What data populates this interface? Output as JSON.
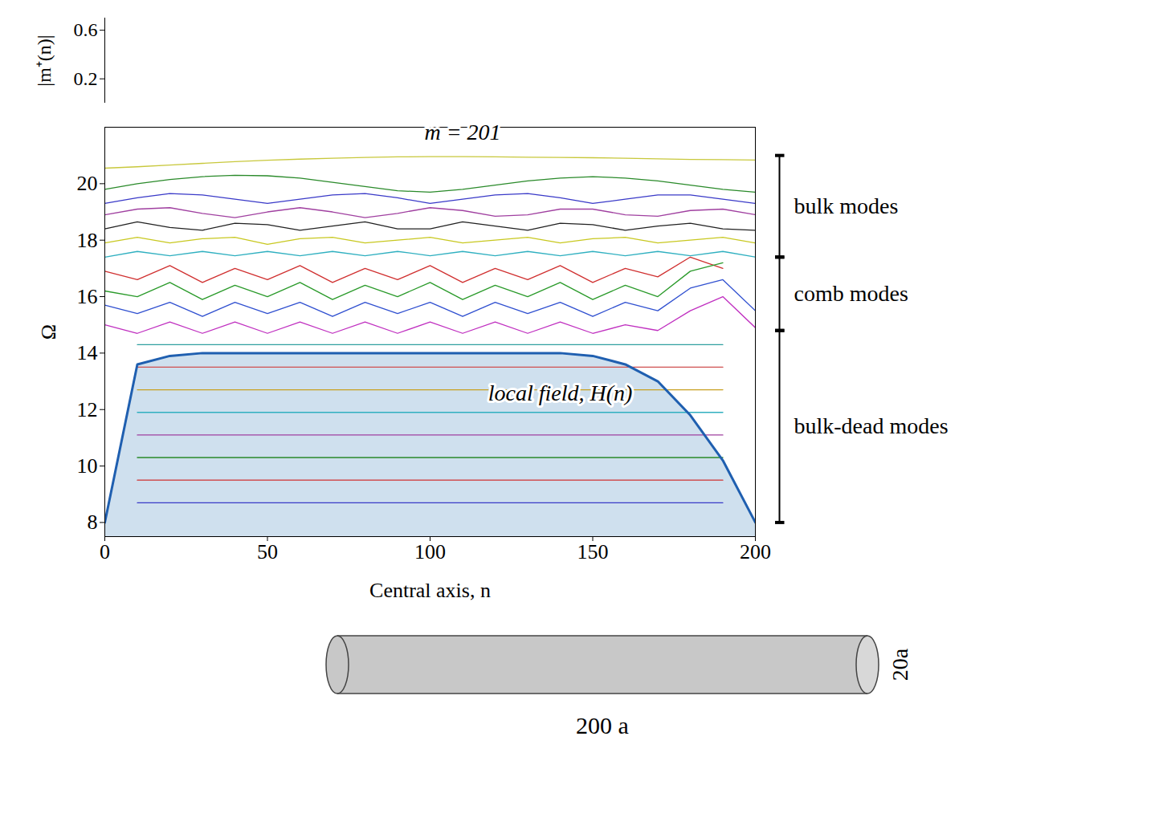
{
  "chart_data": {
    "type": "line",
    "x_label": "Central axis, n",
    "y_label": "Ω",
    "x": [
      0,
      10,
      20,
      30,
      40,
      50,
      60,
      70,
      80,
      90,
      100,
      110,
      120,
      130,
      140,
      150,
      160,
      170,
      180,
      190,
      200
    ],
    "xlim": [
      0,
      200
    ],
    "xticks": [
      0,
      50,
      100,
      150,
      200
    ],
    "ylim": [
      7.5,
      22
    ],
    "yticks": [
      8,
      10,
      12,
      14,
      16,
      18,
      20
    ],
    "y2_label": "|m⁺(n)|",
    "y2lim": [
      0,
      0.7
    ],
    "y2ticks": [
      0.2,
      0.6
    ],
    "groups": [
      {
        "label": "bulk modes",
        "range": [
          17.4,
          21.0
        ]
      },
      {
        "label": "comb modes",
        "range": [
          14.8,
          17.4
        ]
      },
      {
        "label": "bulk-dead modes",
        "range": [
          8.0,
          14.8
        ]
      }
    ],
    "series": [
      {
        "name": "m = 201",
        "color": "#c8c83c",
        "values": [
          20.55,
          20.6,
          20.66,
          20.72,
          20.78,
          20.83,
          20.87,
          20.9,
          20.93,
          20.95,
          20.96,
          20.96,
          20.95,
          20.94,
          20.93,
          20.92,
          20.9,
          20.88,
          20.86,
          20.85,
          20.84
        ]
      },
      {
        "color": "#2a8a2a",
        "values": [
          19.8,
          20.0,
          20.15,
          20.25,
          20.3,
          20.28,
          20.2,
          20.05,
          19.9,
          19.75,
          19.7,
          19.8,
          19.95,
          20.1,
          20.2,
          20.25,
          20.2,
          20.1,
          19.95,
          19.8,
          19.7
        ]
      },
      {
        "color": "#3a3ac8",
        "values": [
          19.3,
          19.5,
          19.65,
          19.6,
          19.45,
          19.3,
          19.45,
          19.6,
          19.65,
          19.5,
          19.3,
          19.45,
          19.6,
          19.65,
          19.5,
          19.3,
          19.45,
          19.6,
          19.6,
          19.45,
          19.3
        ]
      },
      {
        "color": "#a040a0",
        "values": [
          18.9,
          19.1,
          19.15,
          18.95,
          18.8,
          19.0,
          19.15,
          19.0,
          18.8,
          18.95,
          19.15,
          19.05,
          18.85,
          18.9,
          19.1,
          19.1,
          18.9,
          18.85,
          19.05,
          19.1,
          18.9
        ]
      },
      {
        "color": "#222222",
        "values": [
          18.4,
          18.65,
          18.45,
          18.35,
          18.6,
          18.55,
          18.35,
          18.5,
          18.65,
          18.4,
          18.4,
          18.65,
          18.5,
          18.35,
          18.6,
          18.55,
          18.35,
          18.5,
          18.6,
          18.4,
          18.35
        ]
      },
      {
        "color": "#c8c820",
        "values": [
          17.9,
          18.1,
          17.9,
          18.05,
          18.1,
          17.85,
          18.05,
          18.1,
          17.9,
          18.0,
          18.1,
          17.9,
          18.0,
          18.1,
          17.9,
          18.05,
          18.1,
          17.9,
          18.0,
          18.1,
          17.9
        ]
      },
      {
        "color": "#30b0c0",
        "values": [
          17.4,
          17.6,
          17.45,
          17.6,
          17.45,
          17.6,
          17.45,
          17.6,
          17.45,
          17.6,
          17.45,
          17.6,
          17.45,
          17.6,
          17.45,
          17.6,
          17.45,
          17.6,
          17.45,
          17.6,
          17.4
        ]
      },
      {
        "color": "#d03030",
        "values": [
          16.9,
          16.6,
          17.1,
          16.5,
          17.0,
          16.6,
          17.1,
          16.5,
          17.0,
          16.6,
          17.1,
          16.5,
          17.0,
          16.6,
          17.1,
          16.5,
          17.0,
          16.7,
          17.4,
          17.0,
          null
        ]
      },
      {
        "color": "#2a9a2a",
        "values": [
          16.2,
          16.0,
          16.5,
          15.9,
          16.4,
          16.0,
          16.5,
          15.9,
          16.4,
          16.0,
          16.5,
          15.9,
          16.4,
          16.0,
          16.5,
          15.9,
          16.4,
          16.0,
          16.9,
          17.2,
          null
        ]
      },
      {
        "color": "#3050d0",
        "values": [
          15.7,
          15.4,
          15.8,
          15.3,
          15.8,
          15.4,
          15.8,
          15.3,
          15.8,
          15.4,
          15.8,
          15.3,
          15.8,
          15.4,
          15.8,
          15.3,
          15.8,
          15.5,
          16.3,
          16.6,
          15.5
        ]
      },
      {
        "color": "#c030c0",
        "values": [
          15.0,
          14.7,
          15.1,
          14.7,
          15.1,
          14.7,
          15.1,
          14.7,
          15.1,
          14.7,
          15.1,
          14.7,
          15.1,
          14.7,
          15.1,
          14.7,
          15.0,
          14.8,
          15.5,
          16.0,
          14.9
        ]
      },
      {
        "color": "#30a0a0",
        "values": [
          null,
          14.3,
          14.3,
          14.3,
          14.3,
          14.3,
          14.3,
          14.3,
          14.3,
          14.3,
          14.3,
          14.3,
          14.3,
          14.3,
          14.3,
          14.3,
          14.3,
          14.3,
          14.3,
          14.3,
          null
        ]
      },
      {
        "color": "#d05050",
        "values": [
          null,
          13.5,
          13.5,
          13.5,
          13.5,
          13.5,
          13.5,
          13.5,
          13.5,
          13.5,
          13.5,
          13.5,
          13.5,
          13.5,
          13.5,
          13.5,
          13.5,
          13.5,
          13.5,
          13.5,
          null
        ]
      },
      {
        "color": "#c8a020",
        "values": [
          null,
          12.7,
          12.7,
          12.7,
          12.7,
          12.7,
          12.7,
          12.7,
          12.7,
          12.7,
          12.7,
          12.7,
          12.7,
          12.7,
          12.7,
          12.7,
          12.7,
          12.7,
          12.7,
          12.7,
          null
        ]
      },
      {
        "color": "#30b0c0",
        "values": [
          null,
          11.9,
          11.9,
          11.9,
          11.9,
          11.9,
          11.9,
          11.9,
          11.9,
          11.9,
          11.9,
          11.9,
          11.9,
          11.9,
          11.9,
          11.9,
          11.9,
          11.9,
          11.9,
          11.9,
          null
        ]
      },
      {
        "color": "#a040a0",
        "values": [
          null,
          11.1,
          11.1,
          11.1,
          11.1,
          11.1,
          11.1,
          11.1,
          11.1,
          11.1,
          11.1,
          11.1,
          11.1,
          11.1,
          11.1,
          11.1,
          11.1,
          11.1,
          11.1,
          11.1,
          null
        ]
      },
      {
        "color": "#2a8a2a",
        "values": [
          null,
          10.3,
          10.3,
          10.3,
          10.3,
          10.3,
          10.3,
          10.3,
          10.3,
          10.3,
          10.3,
          10.3,
          10.3,
          10.3,
          10.3,
          10.3,
          10.3,
          10.3,
          10.3,
          10.3,
          null
        ]
      },
      {
        "color": "#d03030",
        "values": [
          null,
          9.5,
          9.5,
          9.5,
          9.5,
          9.5,
          9.5,
          9.5,
          9.5,
          9.5,
          9.5,
          9.5,
          9.5,
          9.5,
          9.5,
          9.5,
          9.5,
          9.5,
          9.5,
          9.5,
          null
        ]
      },
      {
        "color": "#3a3ac8",
        "values": [
          null,
          8.7,
          8.7,
          8.7,
          8.7,
          8.7,
          8.7,
          8.7,
          8.7,
          8.7,
          8.7,
          8.7,
          8.7,
          8.7,
          8.7,
          8.7,
          8.7,
          8.7,
          8.7,
          8.7,
          null
        ]
      },
      {
        "name": "local field, H(n)",
        "type": "area",
        "color": "#1f5fb0",
        "values": [
          8.0,
          13.6,
          13.9,
          14.0,
          14.0,
          14.0,
          14.0,
          14.0,
          14.0,
          14.0,
          14.0,
          14.0,
          14.0,
          14.0,
          14.0,
          13.9,
          13.6,
          13.0,
          11.8,
          10.2,
          8.0
        ]
      }
    ],
    "figure": {
      "length_label": "200 a",
      "diameter_label": "20a"
    }
  }
}
